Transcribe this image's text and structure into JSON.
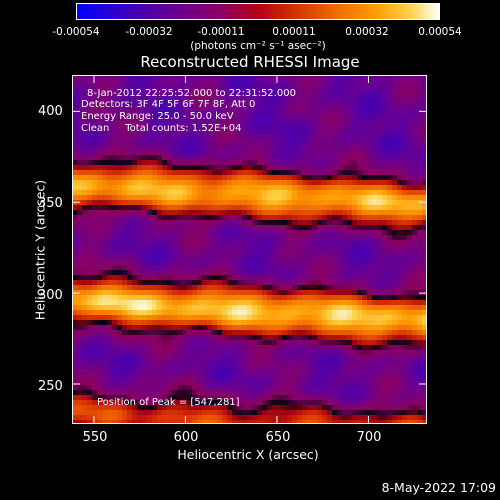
{
  "colorbar": {
    "ticks": [
      "-0.00054",
      "-0.00032",
      "-0.00011",
      "0.00011",
      "0.00032",
      "0.00054"
    ],
    "unit_label": "(photons cm⁻² s⁻¹ asec⁻²)"
  },
  "chart_data": {
    "type": "heatmap",
    "title": "Reconstructed RHESSI Image",
    "xlabel": "Heliocentric X (arcsec)",
    "ylabel": "Heliocentric Y (arcsec)",
    "xlim": [
      538,
      732
    ],
    "ylim": [
      228,
      420
    ],
    "xticks": [
      "550",
      "600",
      "650",
      "700"
    ],
    "yticks": [
      "250",
      "300",
      "350",
      "400"
    ],
    "value_range": [
      -0.00054,
      0.00054
    ],
    "colormap": "blue-purple-red-orange-yellow-white",
    "annotations": {
      "time_range": "8-Jan-2012 22:25:52.000 to 22:31:52.000",
      "detectors": "Detectors: 3F 4F 5F 6F 7F 8F, Att 0",
      "energy_range": "Energy Range: 25.0 - 50.0 keV",
      "method_counts": "Clean     Total counts: 1.52E+04",
      "peak": "Position of Peak = [547,281]"
    },
    "bands": [
      {
        "y_center": 360,
        "peak_value": 0.0005
      },
      {
        "y_center": 296,
        "peak_value": 0.00054
      },
      {
        "y_center": 234,
        "peak_value": 0.0003
      }
    ],
    "peak_position": [
      547,
      281
    ]
  },
  "footer": {
    "date": "8-May-2022 17:09"
  },
  "palette": {
    "background": "#000000",
    "foreground": "#ffffff"
  }
}
